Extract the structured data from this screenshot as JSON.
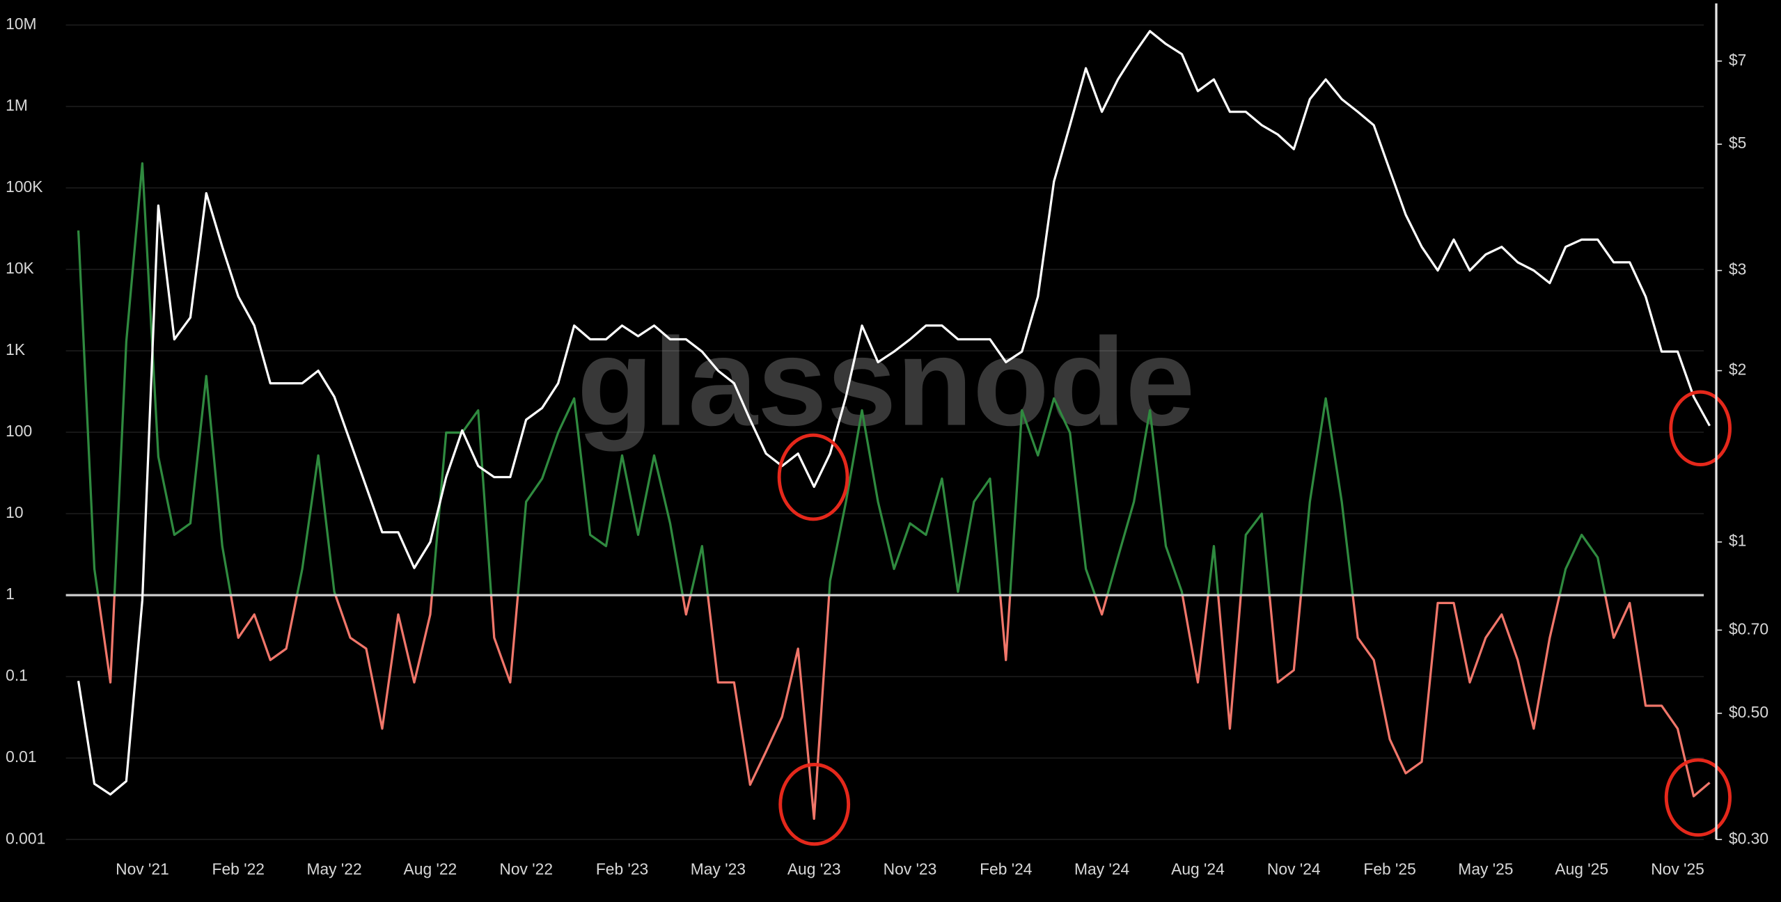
{
  "chart_data": {
    "type": "line",
    "watermark": "glassnode",
    "log_scale": true,
    "grid": true,
    "background": "#000000",
    "reference_line": 1,
    "x": [
      null,
      null,
      null,
      null,
      "Nov '21",
      null,
      null,
      null,
      null,
      null,
      "Feb '22",
      null,
      null,
      null,
      null,
      null,
      "May '22",
      null,
      null,
      null,
      null,
      null,
      "Aug '22",
      null,
      null,
      null,
      null,
      null,
      "Nov '22",
      null,
      null,
      null,
      null,
      null,
      "Feb '23",
      null,
      null,
      null,
      null,
      null,
      "May '23",
      null,
      null,
      null,
      null,
      null,
      "Aug '23",
      null,
      null,
      null,
      null,
      null,
      "Nov '23",
      null,
      null,
      null,
      null,
      null,
      "Feb '24",
      null,
      null,
      null,
      null,
      null,
      "May '24",
      null,
      null,
      null,
      null,
      null,
      "Aug '24",
      null,
      null,
      null,
      null,
      null,
      "Nov '24",
      null,
      null,
      null,
      null,
      null,
      "Feb '25",
      null,
      null,
      null,
      null,
      null,
      "May '25",
      null,
      null,
      null,
      null,
      null,
      "Aug '25",
      null,
      null,
      null,
      null,
      null,
      "Nov '25",
      null,
      null
    ],
    "ylim": [
      0.001,
      10000000
    ],
    "yticks": [
      0.001,
      0.01,
      0.1,
      1,
      10,
      100,
      {
        "value": 1000,
        "label": "1K"
      },
      {
        "value": 10000,
        "label": "10K"
      },
      {
        "value": 100000,
        "label": "100K"
      },
      {
        "value": 1000000,
        "label": "1M"
      },
      {
        "value": 10000000,
        "label": "10M"
      }
    ],
    "y2lim": [
      0.3,
      8.1
    ],
    "y2ticks": [
      {
        "value": 0.3,
        "label": "$0.30"
      },
      {
        "value": 0.5,
        "label": "$0.50"
      },
      {
        "value": 0.7,
        "label": "$0.70"
      },
      {
        "value": 1,
        "label": "$1"
      },
      {
        "value": 2,
        "label": "$2"
      },
      {
        "value": 3,
        "label": "$3"
      },
      {
        "value": 5,
        "label": "$5"
      },
      {
        "value": 7,
        "label": "$7"
      }
    ],
    "series": [
      {
        "colors": {
          "above": "#2f8a3f",
          "below": "#f0766a"
        },
        "values": [
          30000,
          2.1,
          0.085,
          1300,
          200000,
          50,
          5.5,
          7.6,
          490,
          4,
          0.3,
          0.58,
          0.16,
          0.22,
          2.1,
          52,
          1.1,
          0.3,
          0.22,
          0.023,
          0.58,
          0.085,
          0.58,
          99,
          99,
          186,
          0.3,
          0.085,
          14,
          27,
          99,
          260,
          5.5,
          4,
          52,
          5.5,
          52,
          7.6,
          0.58,
          4,
          0.085,
          0.085,
          0.0047,
          0.012,
          0.032,
          0.22,
          0.0018,
          1.5,
          14,
          186,
          14,
          2.1,
          7.6,
          5.5,
          27,
          1.1,
          14,
          27,
          0.16,
          186,
          52,
          260,
          99,
          2.1,
          0.58,
          2.9,
          14,
          186,
          4,
          1.1,
          0.085,
          4,
          0.023,
          5.5,
          10,
          0.085,
          0.12,
          14,
          260,
          14,
          0.3,
          0.16,
          0.017,
          0.0065,
          0.009,
          0.8,
          0.8,
          0.085,
          0.3,
          0.58,
          0.16,
          0.023,
          0.3,
          2.1,
          5.5,
          2.9,
          0.3,
          0.8,
          0.044,
          0.044,
          0.023,
          0.0034,
          0.005
        ]
      },
      {
        "color": "#ffffff",
        "axis": "y2",
        "values": [
          0.57,
          0.376,
          0.36,
          0.38,
          0.79,
          3.9,
          2.27,
          2.48,
          4.1,
          3.3,
          2.7,
          2.4,
          1.9,
          1.9,
          1.9,
          2.0,
          1.8,
          1.5,
          1.25,
          1.04,
          1.04,
          0.9,
          1.0,
          1.3,
          1.57,
          1.36,
          1.3,
          1.3,
          1.64,
          1.72,
          1.9,
          2.4,
          2.27,
          2.27,
          2.4,
          2.3,
          2.4,
          2.27,
          2.27,
          2.16,
          2.0,
          1.9,
          1.64,
          1.43,
          1.36,
          1.43,
          1.25,
          1.43,
          1.8,
          2.4,
          2.07,
          2.16,
          2.27,
          2.4,
          2.4,
          2.27,
          2.27,
          2.27,
          2.07,
          2.16,
          2.7,
          4.3,
          5.4,
          6.8,
          5.7,
          6.5,
          7.2,
          7.9,
          7.5,
          7.2,
          6.2,
          6.5,
          5.7,
          5.7,
          5.4,
          5.2,
          4.9,
          6.0,
          6.5,
          6.0,
          5.7,
          5.4,
          4.5,
          3.76,
          3.3,
          3.0,
          3.4,
          3.0,
          3.2,
          3.3,
          3.1,
          3.0,
          2.85,
          3.3,
          3.4,
          3.4,
          3.1,
          3.1,
          2.7,
          2.16,
          2.16,
          1.8,
          1.6
        ]
      }
    ]
  }
}
